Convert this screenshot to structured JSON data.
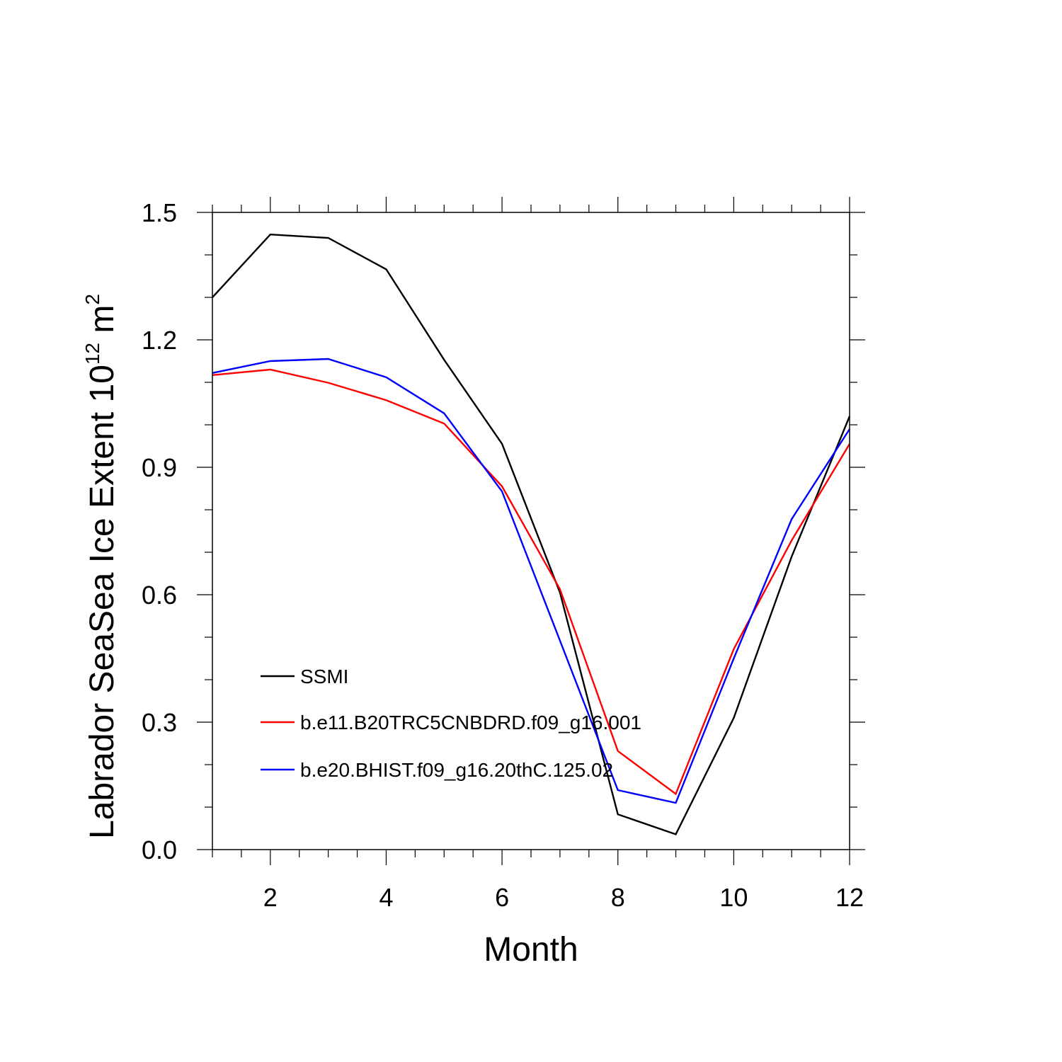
{
  "chart_data": {
    "type": "line",
    "xlabel": "Month",
    "ylabel": "Labrador SeaSea Ice Extent 10",
    "ylabel_exponent": "12",
    "ylabel_unit_base": " m",
    "ylabel_unit_exponent": "2",
    "xlim": [
      1,
      12
    ],
    "ylim": [
      0.0,
      1.5
    ],
    "x_ticks": [
      2,
      4,
      6,
      8,
      10,
      12
    ],
    "x_tick_labels": [
      "2",
      "4",
      "6",
      "8",
      "10",
      "12"
    ],
    "y_ticks": [
      0.0,
      0.3,
      0.6,
      0.9,
      1.2,
      1.5
    ],
    "y_tick_labels": [
      "0.0",
      "0.3",
      "0.6",
      "0.9",
      "1.2",
      "1.5"
    ],
    "grid": false,
    "legend_position": "bottom-left inside",
    "x": [
      1,
      2,
      3,
      4,
      5,
      6,
      7,
      8,
      9,
      10,
      11,
      12
    ],
    "series": [
      {
        "name": "SSMI",
        "color": "#000000",
        "values": [
          1.3,
          1.448,
          1.44,
          1.366,
          1.153,
          0.955,
          0.605,
          0.083,
          0.036,
          0.31,
          0.69,
          1.02
        ]
      },
      {
        "name": "b.e11.B20TRC5CNBDRD.f09_g16.001",
        "color": "#ff0000",
        "values": [
          1.117,
          1.13,
          1.099,
          1.058,
          1.003,
          0.855,
          0.613,
          0.232,
          0.131,
          0.472,
          0.728,
          0.955
        ]
      },
      {
        "name": "b.e20.BHIST.f09_g16.20thC.125.02",
        "color": "#0000ff",
        "values": [
          1.122,
          1.15,
          1.155,
          1.112,
          1.027,
          0.843,
          0.492,
          0.14,
          0.11,
          0.45,
          0.778,
          0.99
        ]
      }
    ]
  }
}
